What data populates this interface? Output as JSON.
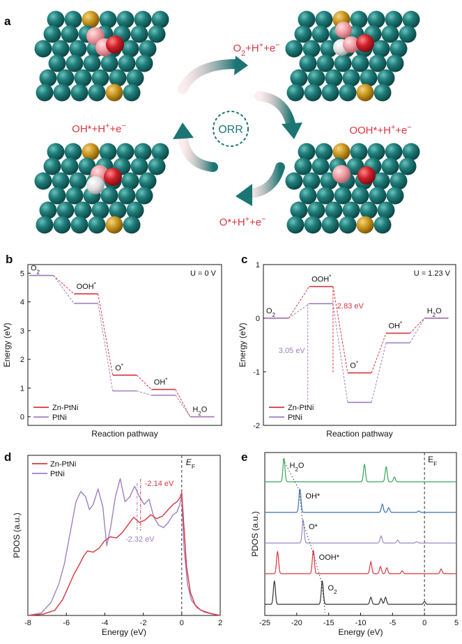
{
  "colors": {
    "zn_ptni": "#d9343f",
    "ptni": "#9f7fc0",
    "pt_atom": "#1f7d7a",
    "ni_atom": "#c8951d",
    "o_atom": "#cf1f2a",
    "pink_atom": "#ec9aa0",
    "h_atom": "#e3e3e3",
    "arrow": "#1b7572",
    "label_red": "#d9343f"
  },
  "panel_a": {
    "letter": "a",
    "center_label": "ORR",
    "icons": [
      "pt-slab-icon",
      "ni-dopant-icon",
      "adsorbate-icon"
    ],
    "steps": [
      {
        "parts": [
          {
            "t": "O"
          },
          {
            "t": "2",
            "s": "sub"
          },
          {
            "t": "+H"
          },
          {
            "t": "+",
            "s": "sup"
          },
          {
            "t": "+e"
          },
          {
            "t": "−",
            "s": "sup"
          }
        ]
      },
      {
        "parts": [
          {
            "t": "OOH*+H"
          },
          {
            "t": "+",
            "s": "sup"
          },
          {
            "t": "+e"
          },
          {
            "t": "−",
            "s": "sup"
          }
        ]
      },
      {
        "parts": [
          {
            "t": "O*+H"
          },
          {
            "t": "+",
            "s": "sup"
          },
          {
            "t": "+e"
          },
          {
            "t": "−",
            "s": "sup"
          }
        ]
      },
      {
        "parts": [
          {
            "t": "OH*+H"
          },
          {
            "t": "+",
            "s": "sup"
          },
          {
            "t": "+e"
          },
          {
            "t": "−",
            "s": "sup"
          }
        ]
      }
    ]
  },
  "panel_b": {
    "letter": "b",
    "condition": "U = 0 V",
    "xlabel": "Reaction pathway",
    "ylabel": "Energy (eV)",
    "ylim": [
      -0.3,
      5.3
    ],
    "yticks": [
      0,
      1,
      2,
      3,
      4,
      5
    ],
    "legend": [
      "Zn-PtNi",
      "PtNi"
    ],
    "species": [
      {
        "label": "O2",
        "parts": [
          {
            "t": "O"
          },
          {
            "t": "2",
            "s": "sub"
          }
        ]
      },
      {
        "label": "OOH*",
        "parts": [
          {
            "t": "OOH"
          },
          {
            "t": "*",
            "s": "sup"
          }
        ]
      },
      {
        "label": "O*",
        "parts": [
          {
            "t": "O"
          },
          {
            "t": "*",
            "s": "sup"
          }
        ]
      },
      {
        "label": "OH*",
        "parts": [
          {
            "t": "OH"
          },
          {
            "t": "*",
            "s": "sup"
          }
        ]
      },
      {
        "label": "H2O",
        "parts": [
          {
            "t": "H"
          },
          {
            "t": "2",
            "s": "sub"
          },
          {
            "t": "O"
          }
        ]
      }
    ]
  },
  "panel_c": {
    "letter": "c",
    "condition": "U = 1.23 V",
    "xlabel": "Reaction pathway",
    "ylabel": "Energy (eV)",
    "ylim": [
      -2,
      1
    ],
    "yticks": [
      -2,
      -1,
      0,
      1
    ],
    "legend": [
      "Zn-PtNi",
      "PtNi"
    ],
    "annotation_zn": "2.83 eV",
    "annotation_ptni": "3.05 eV",
    "species": [
      {
        "label": "O2",
        "parts": [
          {
            "t": "O"
          },
          {
            "t": "2",
            "s": "sub"
          }
        ]
      },
      {
        "label": "OOH*",
        "parts": [
          {
            "t": "OOH"
          },
          {
            "t": "*",
            "s": "sup"
          }
        ]
      },
      {
        "label": "O*",
        "parts": [
          {
            "t": "O"
          },
          {
            "t": "*",
            "s": "sup"
          }
        ]
      },
      {
        "label": "OH*",
        "parts": [
          {
            "t": "OH"
          },
          {
            "t": "*",
            "s": "sup"
          }
        ]
      },
      {
        "label": "H2O",
        "parts": [
          {
            "t": "H"
          },
          {
            "t": "2",
            "s": "sub"
          },
          {
            "t": "O"
          }
        ]
      }
    ]
  },
  "panel_d": {
    "letter": "d",
    "xlabel": "Energy (eV)",
    "ylabel": "PDOS (a.u.)",
    "xlim": [
      -8,
      2
    ],
    "xticks": [
      -8,
      -6,
      -4,
      -2,
      0,
      2
    ],
    "fermi_parts": [
      {
        "t": "E",
        "s": "ital"
      },
      {
        "t": "F",
        "s": "sub"
      }
    ],
    "legend": [
      "Zn-PtNi",
      "PtNi"
    ],
    "dband_zn": "-2.14 eV",
    "dband_ptni": "-2.32 eV"
  },
  "panel_e": {
    "letter": "e",
    "xlabel": "Energy (eV)",
    "ylabel": "PDOS (a.u.)",
    "xlim": [
      -25,
      5
    ],
    "xticks": [
      -25,
      -20,
      -15,
      -10,
      -5,
      0,
      5
    ],
    "fermi_parts": [
      {
        "t": "E"
      },
      {
        "t": "F",
        "s": "sub"
      }
    ],
    "traces": [
      {
        "label": "H2O",
        "parts": [
          {
            "t": "H"
          },
          {
            "t": "2",
            "s": "sub"
          },
          {
            "t": "O"
          }
        ],
        "color": "#3aa35a"
      },
      {
        "label": "OH*",
        "parts": [
          {
            "t": "OH*"
          }
        ],
        "color": "#3a6fb3"
      },
      {
        "label": "O*",
        "parts": [
          {
            "t": "O*"
          }
        ],
        "color": "#9a86c4"
      },
      {
        "label": "OOH*",
        "parts": [
          {
            "t": "OOH*"
          }
        ],
        "color": "#d9343f"
      },
      {
        "label": "O2",
        "parts": [
          {
            "t": "O"
          },
          {
            "t": "2",
            "s": "sub"
          }
        ],
        "color": "#333333"
      }
    ]
  },
  "chart_data": [
    {
      "type": "line",
      "panel": "b",
      "categories": [
        "O2",
        "OOH*",
        "O*",
        "OH*",
        "H2O"
      ],
      "series": [
        {
          "name": "Zn-PtNi",
          "values": [
            4.92,
            4.28,
            1.45,
            0.95,
            0
          ]
        },
        {
          "name": "PtNi",
          "values": [
            4.92,
            3.95,
            0.9,
            0.75,
            0
          ]
        }
      ],
      "xlabel": "Reaction pathway",
      "ylabel": "Energy (eV)",
      "ylim": [
        -0.3,
        5.3
      ]
    },
    {
      "type": "line",
      "panel": "c",
      "categories": [
        "O2",
        "OOH*",
        "O*",
        "OH*",
        "H2O"
      ],
      "series": [
        {
          "name": "Zn-PtNi",
          "values": [
            0,
            0.59,
            -1.02,
            -0.28,
            0
          ]
        },
        {
          "name": "PtNi",
          "values": [
            0,
            0.27,
            -1.57,
            -0.46,
            0
          ]
        }
      ],
      "xlabel": "Reaction pathway",
      "ylabel": "Energy (eV)",
      "ylim": [
        -2,
        1
      ]
    },
    {
      "type": "line",
      "panel": "d",
      "xlabel": "Energy (eV)",
      "ylabel": "PDOS (a.u.)",
      "xlim": [
        -8,
        2
      ],
      "series": [
        {
          "name": "Zn-PtNi",
          "x": [
            -8,
            -7.2,
            -6.6,
            -6.2,
            -5.9,
            -5.6,
            -5.3,
            -5.1,
            -4.9,
            -4.6,
            -4.3,
            -4.0,
            -3.7,
            -3.4,
            -3.1,
            -2.8,
            -2.5,
            -2.2,
            -1.9,
            -1.6,
            -1.3,
            -1.0,
            -0.7,
            -0.45,
            -0.25,
            -0.1,
            0.0,
            0.1,
            0.25,
            0.45,
            0.7,
            1.0,
            1.5,
            2.0
          ],
          "y": [
            0.0,
            0.05,
            0.2,
            0.6,
            1.1,
            1.6,
            2.0,
            2.3,
            2.5,
            2.45,
            2.6,
            2.9,
            3.05,
            3.0,
            3.2,
            3.5,
            3.8,
            3.6,
            3.7,
            3.9,
            3.75,
            3.85,
            4.1,
            4.3,
            4.4,
            4.55,
            4.75,
            3.6,
            1.9,
            0.9,
            0.4,
            0.2,
            0.08,
            0.0
          ]
        },
        {
          "name": "PtNi",
          "x": [
            -8,
            -7.3,
            -6.8,
            -6.4,
            -6.1,
            -5.8,
            -5.5,
            -5.25,
            -5.0,
            -4.8,
            -4.6,
            -4.35,
            -4.1,
            -3.9,
            -3.7,
            -3.45,
            -3.2,
            -2.95,
            -2.7,
            -2.45,
            -2.2,
            -1.95,
            -1.7,
            -1.45,
            -1.2,
            -0.95,
            -0.7,
            -0.45,
            -0.25,
            -0.1,
            0.0,
            0.12,
            0.3,
            0.5,
            0.8,
            1.2,
            1.6,
            2.0
          ],
          "y": [
            0.0,
            0.1,
            0.5,
            1.2,
            2.0,
            3.2,
            4.4,
            4.8,
            4.6,
            4.1,
            4.3,
            4.9,
            4.2,
            2.7,
            3.4,
            4.6,
            5.3,
            4.4,
            4.6,
            5.0,
            4.6,
            4.3,
            4.5,
            3.8,
            3.5,
            3.4,
            3.6,
            3.9,
            4.0,
            4.3,
            4.65,
            2.6,
            1.2,
            0.6,
            0.3,
            0.12,
            0.05,
            0.0
          ]
        }
      ]
    },
    {
      "type": "line",
      "panel": "e",
      "xlabel": "Energy (eV)",
      "ylabel": "PDOS (a.u.)",
      "xlim": [
        -25,
        5
      ],
      "series": [
        {
          "name": "H2O",
          "peaks": [
            [
              -22.0,
              1.0
            ],
            [
              -9.4,
              0.75
            ],
            [
              -6.0,
              0.65
            ],
            [
              -4.7,
              0.2
            ]
          ]
        },
        {
          "name": "OH*",
          "peaks": [
            [
              -19.5,
              1.0
            ],
            [
              -6.6,
              0.35
            ],
            [
              -5.6,
              0.2
            ],
            [
              -0.9,
              0.06
            ]
          ]
        },
        {
          "name": "O*",
          "peaks": [
            [
              -19.0,
              1.0
            ],
            [
              -6.8,
              0.3
            ],
            [
              -4.2,
              0.12
            ],
            [
              -1.2,
              0.06
            ]
          ]
        },
        {
          "name": "OOH*",
          "peaks": [
            [
              -23.0,
              0.95
            ],
            [
              -17.4,
              1.0
            ],
            [
              -8.4,
              0.5
            ],
            [
              -6.9,
              0.3
            ],
            [
              -5.9,
              0.25
            ],
            [
              -3.5,
              0.12
            ],
            [
              2.6,
              0.2
            ]
          ]
        },
        {
          "name": "O2",
          "peaks": [
            [
              -23.5,
              1.0
            ],
            [
              -16.0,
              1.0
            ],
            [
              -8.4,
              0.3
            ],
            [
              -6.8,
              0.25
            ],
            [
              -6.1,
              0.3
            ],
            [
              0.0,
              0.12
            ]
          ]
        }
      ]
    }
  ]
}
